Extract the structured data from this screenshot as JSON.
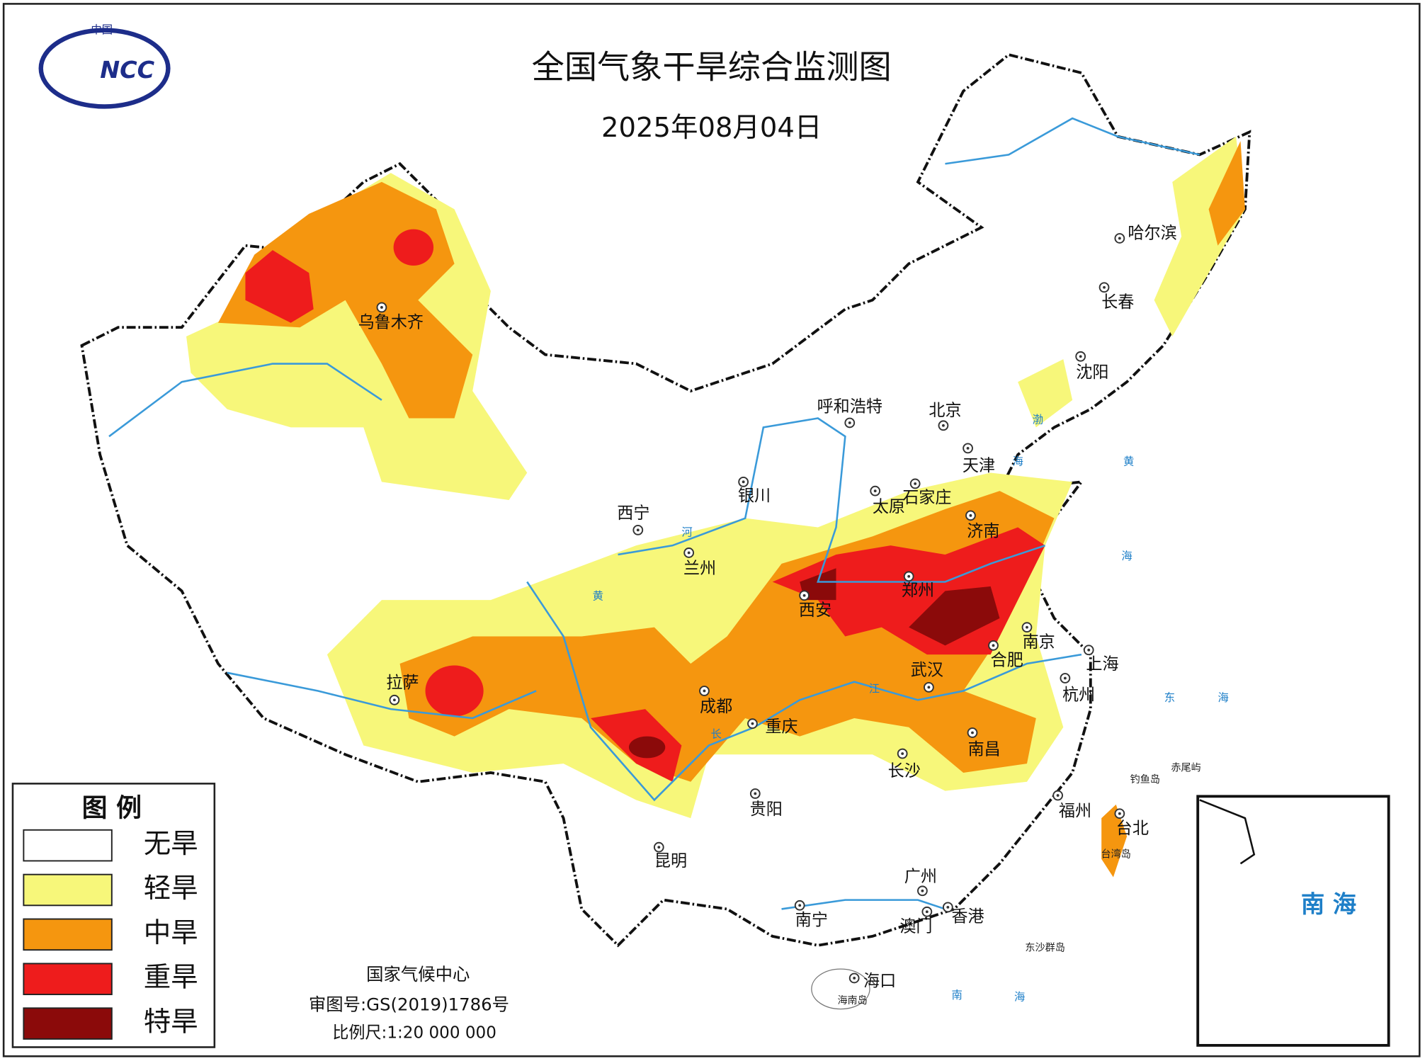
{
  "header": {
    "logo_top": "中国",
    "logo": "NCC",
    "title": "全国气象干旱综合监测图",
    "date": "2025年08月04日"
  },
  "legend": {
    "title": "图 例",
    "items": [
      {
        "label": "无旱",
        "color": "#ffffff"
      },
      {
        "label": "轻旱",
        "color": "#f7f77a"
      },
      {
        "label": "中旱",
        "color": "#f5960f"
      },
      {
        "label": "重旱",
        "color": "#ee1c1c"
      },
      {
        "label": "特旱",
        "color": "#8b0a0a"
      }
    ]
  },
  "cities": [
    "乌鲁木齐",
    "呼和浩特",
    "北京",
    "天津",
    "石家庄",
    "太原",
    "济南",
    "银川",
    "西宁",
    "兰州",
    "西安",
    "郑州",
    "南京",
    "合肥",
    "上海",
    "武汉",
    "杭州",
    "成都",
    "重庆",
    "拉萨",
    "南昌",
    "长沙",
    "贵阳",
    "福州",
    "台北",
    "昆明",
    "广州",
    "南宁",
    "澳门",
    "香港",
    "海口",
    "哈尔滨",
    "长春",
    "沈阳"
  ],
  "places": [
    "钓鱼岛",
    "赤尾屿",
    "东沙群岛",
    "海南岛",
    "台湾岛"
  ],
  "water_labels": [
    "渤",
    "海",
    "黄",
    "海",
    "东",
    "海",
    "南",
    "海",
    "黄",
    "河",
    "长",
    "江"
  ],
  "inset": {
    "label": "南 海"
  },
  "footer": {
    "org": "国家气候中心",
    "review": "审图号:GS(2019)1786号",
    "scale": "比例尺:1:20 000 000"
  }
}
